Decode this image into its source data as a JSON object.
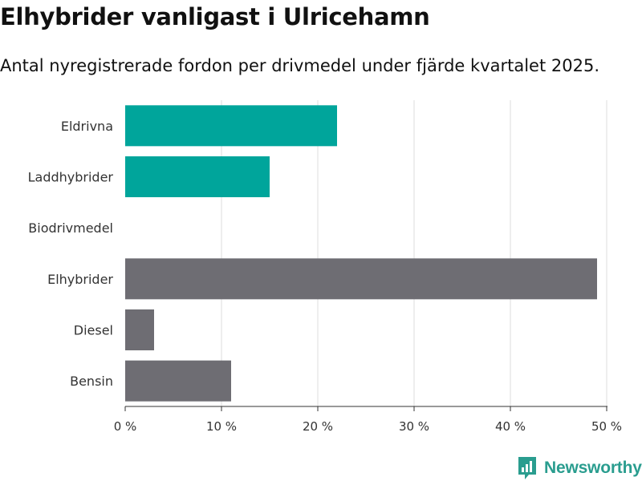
{
  "title": "Elhybrider vanligast i Ulricehamn",
  "subtitle": "Antal nyregistrerade fordon per drivmedel under fjärde kvartalet 2025.",
  "brand": {
    "name": "Newsworthy",
    "color": "#2a9d8f"
  },
  "colors": {
    "highlight": "#00a59b",
    "default": "#6e6d73",
    "grid": "#dddddd",
    "axis": "#333333",
    "label": "#333333"
  },
  "chart_data": {
    "type": "bar",
    "orientation": "horizontal",
    "title": "Elhybrider vanligast i Ulricehamn",
    "subtitle": "Antal nyregistrerade fordon per drivmedel under fjärde kvartalet 2025.",
    "categories": [
      "Eldrivna",
      "Laddhybrider",
      "Biodrivmedel",
      "Elhybrider",
      "Diesel",
      "Bensin"
    ],
    "values": [
      22,
      15,
      0,
      49,
      3,
      11
    ],
    "unit": "%",
    "highlighted": [
      "Eldrivna",
      "Laddhybrider"
    ],
    "xlim": [
      0,
      50
    ],
    "ticks": [
      0,
      10,
      20,
      30,
      40,
      50
    ],
    "tick_labels": [
      "0 %",
      "10 %",
      "20 %",
      "30 %",
      "40 %",
      "50 %"
    ],
    "xlabel": "",
    "ylabel": "",
    "grid": "vertical"
  }
}
